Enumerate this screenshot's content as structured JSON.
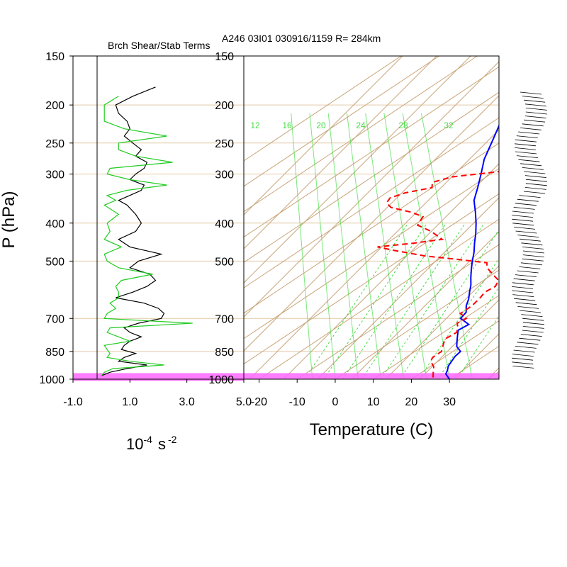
{
  "header": {
    "left_title": "Brch Shear/Stab Terms",
    "right_title": "A246 03I01 030916/1159 R= 284km"
  },
  "left_panel": {
    "xlabel_base": "10",
    "xlabel_exp1": "-4",
    "xlabel_unit": "s",
    "xlabel_exp2": "-2"
  },
  "right_panel": {
    "xlabel": "Temperature (C)"
  },
  "y_axis": {
    "label": "P (hPa)"
  },
  "chart_data": [
    {
      "type": "line",
      "panel": "left",
      "title": "Brch Shear/Stab Terms",
      "xlabel": "10-4 s-2",
      "ylabel": "P (hPa)",
      "xlim": [
        -1.0,
        5.0
      ],
      "ylim": [
        1000,
        150
      ],
      "yscale": "log",
      "x_ticks": [
        "-1.0",
        "1.0",
        "3.0",
        "5.0"
      ],
      "y_ticks": [
        150,
        200,
        250,
        300,
        400,
        500,
        700,
        850,
        1000
      ],
      "colors": {
        "shear": "#000000",
        "stab": "#22cc22"
      },
      "series": [
        {
          "key": "shear",
          "p": [
            180,
            190,
            200,
            210,
            220,
            230,
            240,
            250,
            260,
            270,
            280,
            290,
            300,
            310,
            320,
            330,
            340,
            350,
            360,
            380,
            400,
            420,
            440,
            460,
            480,
            500,
            520,
            540,
            560,
            580,
            600,
            620,
            640,
            660,
            680,
            700,
            720,
            740,
            760,
            780,
            800,
            820,
            840,
            860,
            880,
            900,
            920,
            940,
            960,
            980
          ],
          "values": [
            1.9,
            1.1,
            0.5,
            0.6,
            0.9,
            1.0,
            0.8,
            1.1,
            1.4,
            1.2,
            1.6,
            1.5,
            1.2,
            1.0,
            1.5,
            1.4,
            1.0,
            0.6,
            0.9,
            1.2,
            1.4,
            1.2,
            0.6,
            1.0,
            2.1,
            1.3,
            1.0,
            1.7,
            1.9,
            1.6,
            1.1,
            0.5,
            1.5,
            2.0,
            2.2,
            2.1,
            1.3,
            0.8,
            1.0,
            1.4,
            1.0,
            0.8,
            0.7,
            1.2,
            0.8,
            0.6,
            1.6,
            0.9,
            0.3,
            0.0
          ]
        },
        {
          "key": "stab",
          "p": [
            190,
            200,
            210,
            220,
            230,
            240,
            250,
            260,
            270,
            280,
            290,
            300,
            310,
            320,
            330,
            340,
            350,
            360,
            380,
            400,
            420,
            440,
            460,
            480,
            500,
            520,
            540,
            560,
            580,
            600,
            620,
            640,
            660,
            680,
            700,
            720,
            740,
            760,
            780,
            800,
            820,
            840,
            860,
            880,
            900,
            920,
            940,
            960,
            980
          ],
          "values": [
            0.6,
            0.1,
            0.1,
            0.1,
            0.8,
            2.3,
            0.6,
            0.6,
            1.2,
            2.5,
            0.3,
            0.2,
            1.0,
            2.3,
            0.9,
            0.2,
            0.5,
            0.1,
            0.6,
            0.2,
            0.3,
            0.1,
            0.7,
            0.1,
            0.2,
            0.6,
            1.8,
            0.7,
            0.5,
            0.6,
            0.6,
            0.3,
            0.5,
            0.2,
            0.1,
            3.2,
            0.3,
            0.2,
            0.6,
            1.0,
            0.1,
            0.2,
            0.3,
            0.2,
            1.0,
            2.2,
            0.4,
            0.1,
            0.0
          ]
        }
      ]
    },
    {
      "type": "line",
      "panel": "right",
      "subtype": "skew-T log-p",
      "title": "A246 03I01 030916/1159 R= 284km",
      "xlabel": "Temperature (C)",
      "ylabel": "P (hPa)",
      "xlim": [
        -24,
        43
      ],
      "ylim": [
        1000,
        150
      ],
      "yscale": "log",
      "x_ticks": [
        "-20",
        "-10",
        "0",
        "10",
        "20",
        "30"
      ],
      "y_ticks": [
        150,
        200,
        250,
        300,
        400,
        500,
        700,
        850,
        1000
      ],
      "colors": {
        "temperature": "#0000ff",
        "dewpoint": "#ff0000",
        "isotherm": "#c8a57a",
        "mixing_ratio": "#44dd44"
      },
      "highlight_band": {
        "p_top": 965,
        "p_bottom": 1010,
        "color": "#ff66ff"
      },
      "mixing_ratio_labels": [
        "12",
        "16",
        "20",
        "24",
        "28",
        "32"
      ],
      "series": [
        {
          "key": "temperature",
          "name": "",
          "p": [
            1000,
            970,
            950,
            925,
            900,
            875,
            850,
            825,
            800,
            775,
            750,
            725,
            700,
            675,
            650,
            625,
            600,
            575,
            550,
            525,
            500,
            475,
            450,
            425,
            400,
            375,
            350,
            325,
            300,
            275,
            250,
            225,
            200,
            180
          ],
          "values": [
            30.0,
            27.0,
            26.0,
            24.5,
            23.5,
            22.5,
            22.0,
            19.0,
            17.0,
            15.0,
            13.0,
            13.5,
            9.0,
            8.0,
            5.5,
            3.5,
            1.0,
            -1.5,
            -4.5,
            -7.5,
            -10.5,
            -13.5,
            -17.0,
            -20.5,
            -24.5,
            -29.0,
            -34.0,
            -38.0,
            -42.5,
            -47.5,
            -52.0,
            -57.0,
            -63.0,
            -70.0
          ]
        },
        {
          "key": "dewpoint",
          "name": "",
          "p": [
            990,
            960,
            930,
            900,
            880,
            850,
            820,
            790,
            760,
            740,
            720,
            700,
            680,
            650,
            620,
            600,
            580,
            560,
            540,
            520,
            505,
            495,
            485,
            470,
            460,
            450,
            440,
            420,
            405,
            395,
            385,
            375,
            365,
            355,
            345,
            335,
            325,
            315,
            305,
            295,
            285,
            275,
            265,
            255,
            245,
            235,
            225,
            215,
            205,
            195,
            185
          ],
          "values": [
            25.0,
            23.0,
            21.0,
            18.0,
            17.0,
            17.0,
            15.0,
            13.0,
            13.5,
            12.0,
            10.0,
            10.5,
            7.0,
            7.0,
            6.0,
            5.0,
            5.5,
            4.0,
            0.0,
            -4.0,
            -6.0,
            -15.0,
            -25.0,
            -35.0,
            -41.0,
            -33.0,
            -27.0,
            -33.0,
            -39.0,
            -40.0,
            -41.0,
            -46.0,
            -53.0,
            -56.0,
            -57.0,
            -55.0,
            -50.0,
            -52.0,
            -49.0,
            -38.0,
            -30.0,
            -23.0,
            -17.0,
            -18.0,
            -23.0,
            -30.0,
            -37.0,
            -45.0,
            -52.0,
            -60.0,
            -66.0
          ]
        }
      ]
    }
  ]
}
